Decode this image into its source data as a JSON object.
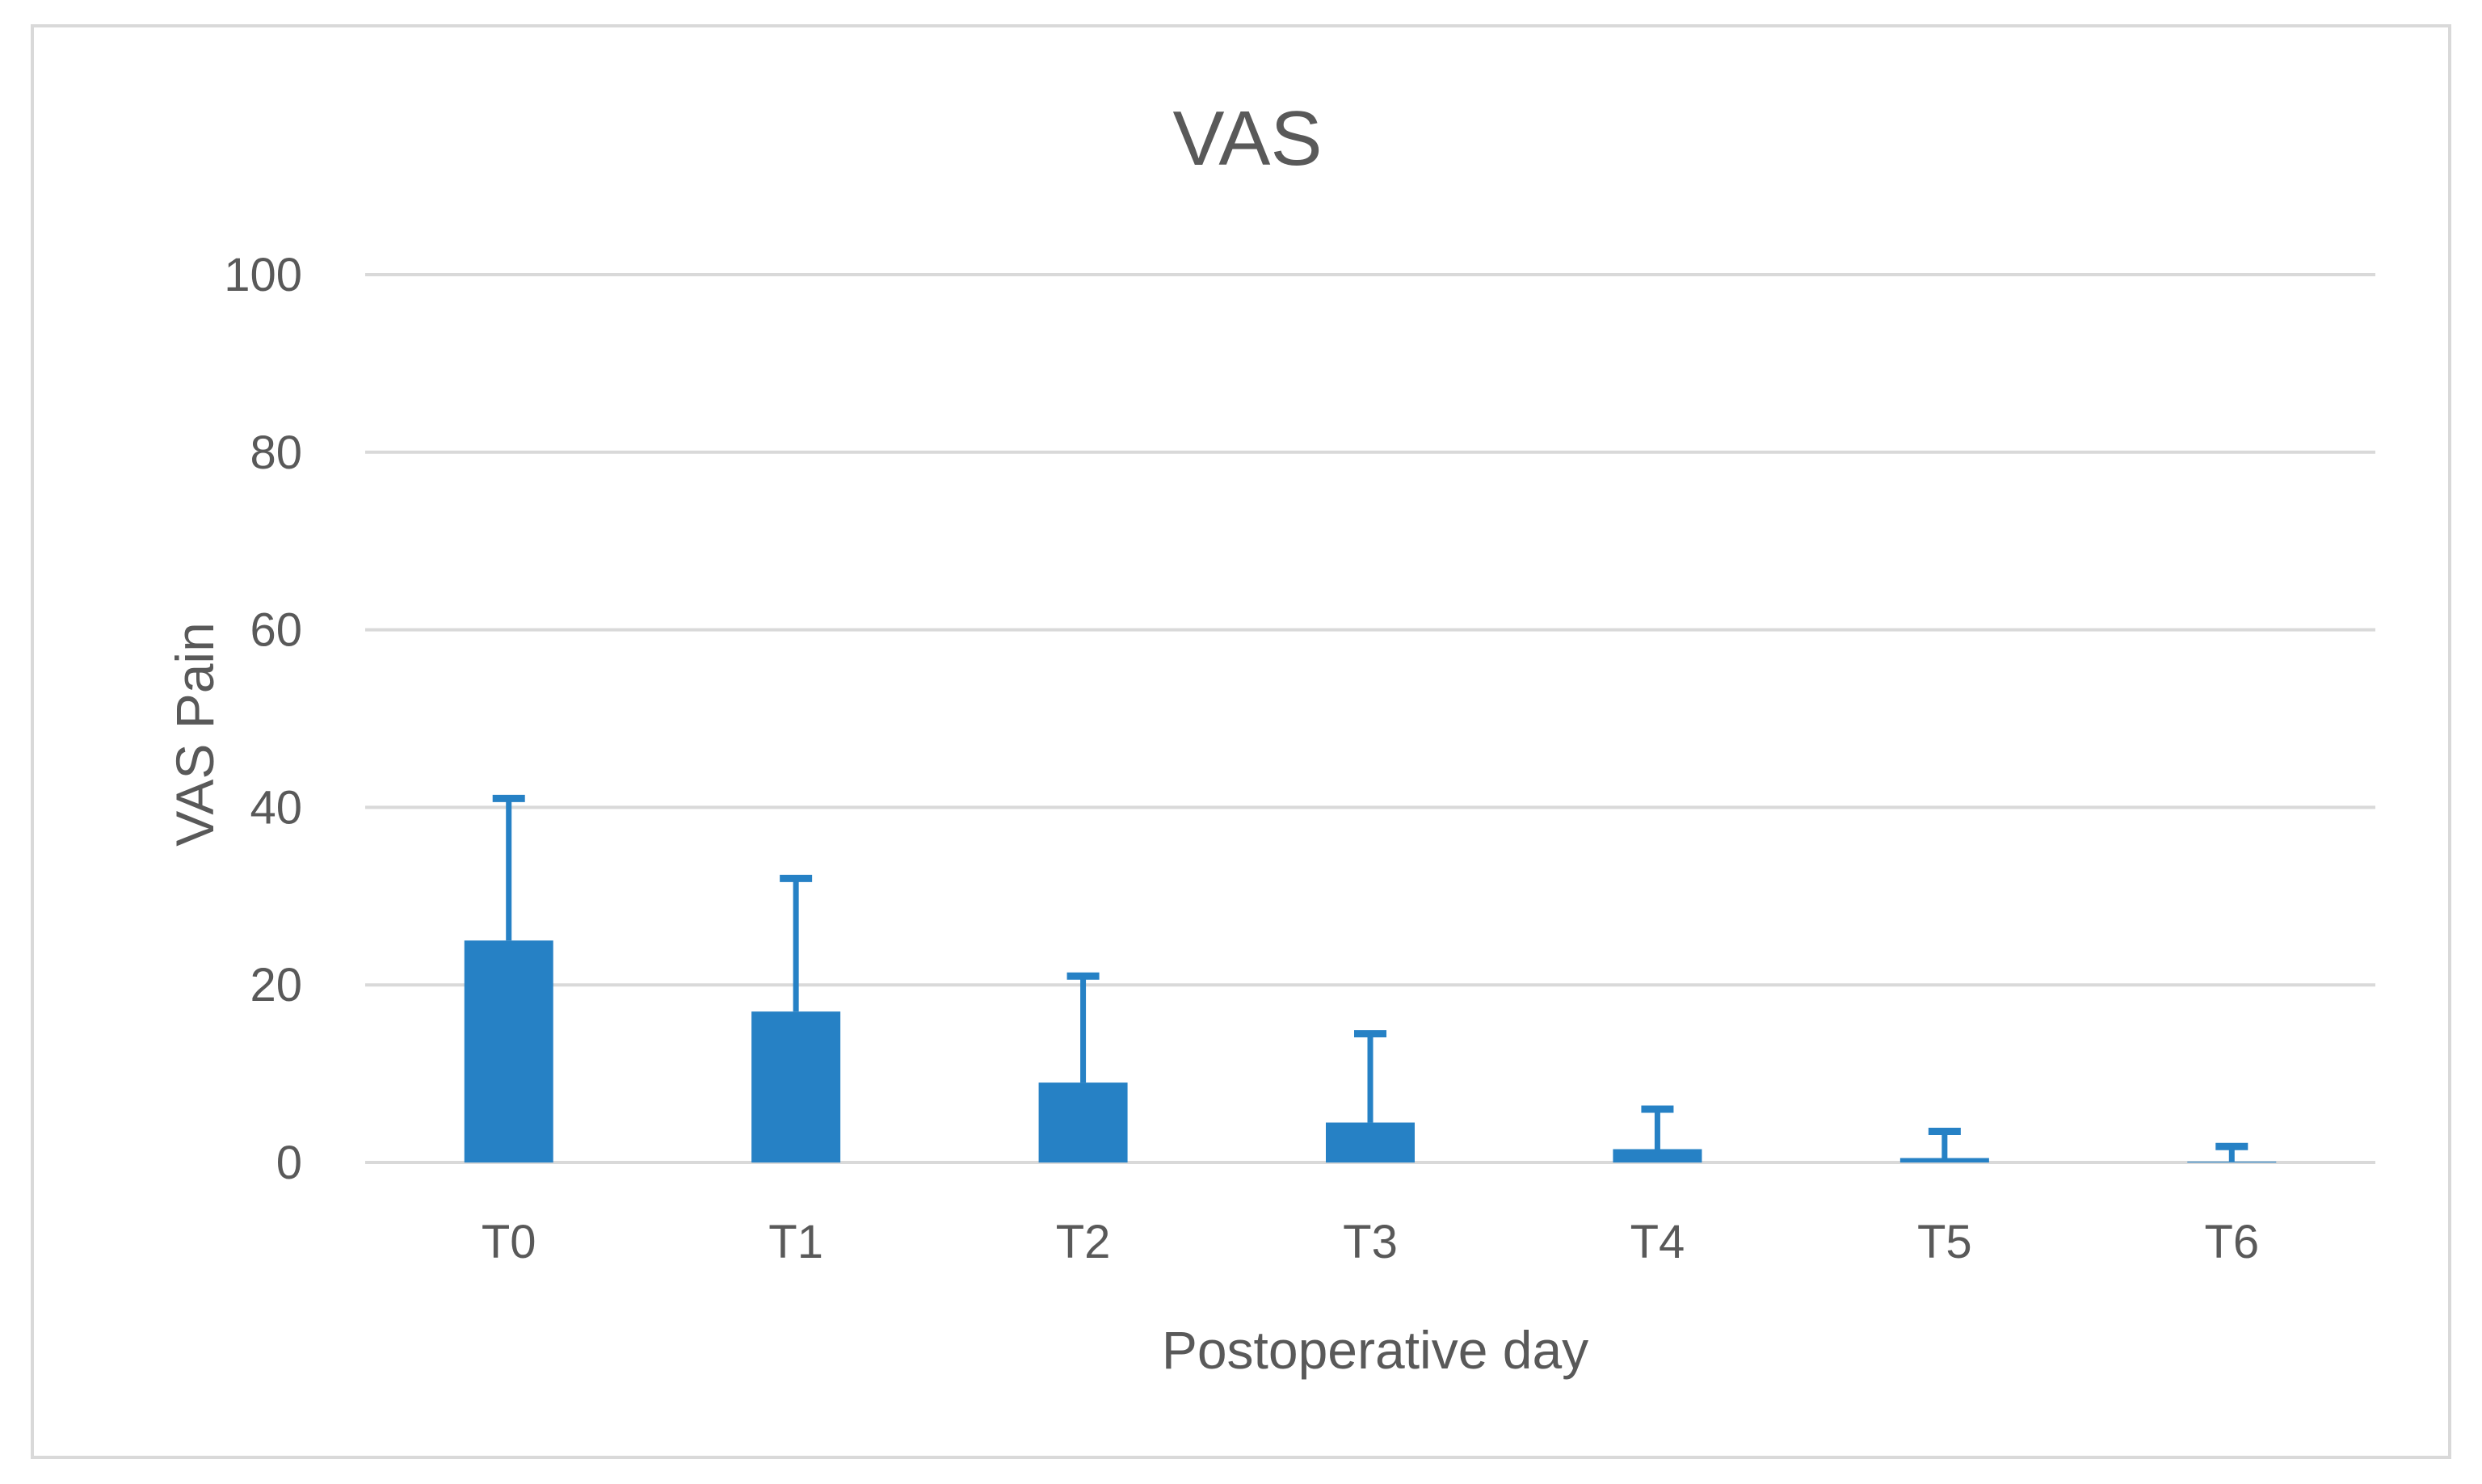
{
  "colors": {
    "bar": "#2681c5",
    "error_bar": "#2681c5",
    "gridline": "#d9d9d9",
    "text": "#595959",
    "frame_border": "#d9d9d9"
  },
  "chart_data": {
    "type": "bar",
    "title": "VAS",
    "xlabel": "Postoperative day",
    "ylabel": "VAS Pain",
    "categories": [
      "T0",
      "T1",
      "T2",
      "T3",
      "T4",
      "T5",
      "T6"
    ],
    "values": [
      25,
      17,
      9,
      4.5,
      1.5,
      0.5,
      0.1
    ],
    "error_upper": [
      41,
      32,
      21,
      14.5,
      6,
      3.5,
      1.8
    ],
    "ylim": [
      0,
      100
    ],
    "yticks": [
      0,
      20,
      40,
      60,
      80,
      100
    ],
    "grid": true,
    "legend": "none"
  }
}
